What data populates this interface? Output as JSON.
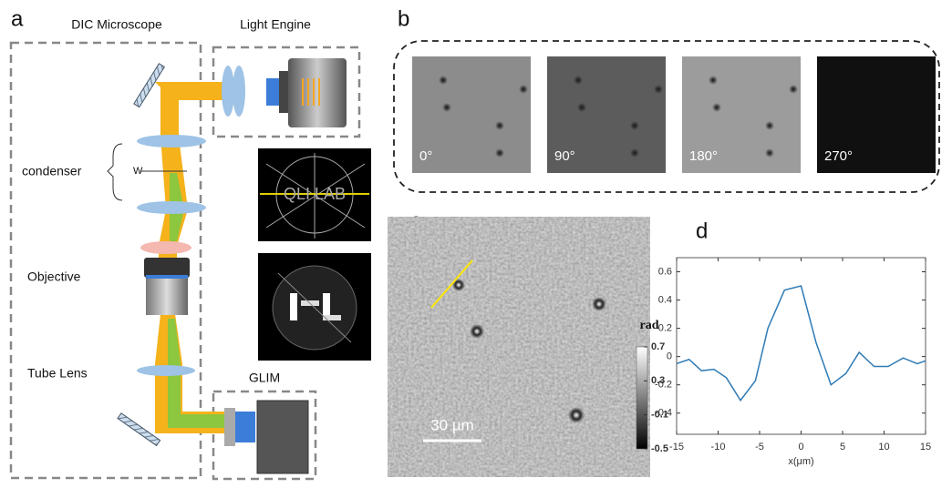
{
  "panel_a": {
    "label": "a",
    "titles": [
      "DIC Microscope",
      "Light Engine"
    ],
    "labels": {
      "condenser": "condenser",
      "w": "W",
      "objective": "Objective",
      "tube_lens": "Tube Lens",
      "glim": "GLIM",
      "logo": "QLI LAB"
    }
  },
  "panel_b": {
    "label": "b",
    "images": [
      "0°",
      "90°",
      "180°",
      "270°"
    ]
  },
  "panel_c": {
    "label": "c",
    "scale_bar": "30 µm",
    "colorbar": {
      "title": "rad",
      "lim": [
        -0.5,
        0.7
      ],
      "ticks": [
        0.7,
        0.3,
        -0.1,
        -0.5
      ]
    }
  },
  "chart_data": {
    "type": "line",
    "label": "d",
    "xlabel": "x(μm)",
    "x": [
      -15,
      -13.5,
      -12,
      -10.5,
      -9,
      -7.3,
      -5.5,
      -4,
      -2,
      0,
      1.8,
      3.6,
      5.4,
      7,
      8.8,
      10.5,
      12.3,
      14,
      15
    ],
    "series": [
      {
        "color": "#2f7bb5",
        "values": [
          -0.05,
          -0.02,
          -0.1,
          -0.09,
          -0.15,
          -0.31,
          -0.17,
          0.2,
          0.47,
          0.5,
          0.1,
          -0.2,
          -0.12,
          0.03,
          -0.07,
          -0.07,
          -0.01,
          -0.05,
          -0.03
        ]
      }
    ],
    "xlim": [
      -15,
      15
    ],
    "ylim": [
      -0.55,
      0.7
    ],
    "xticks": [
      -15,
      -10,
      -5,
      0,
      5,
      10,
      15
    ],
    "yticks": [
      -0.4,
      -0.2,
      0,
      0.2,
      0.4,
      0.6
    ]
  }
}
